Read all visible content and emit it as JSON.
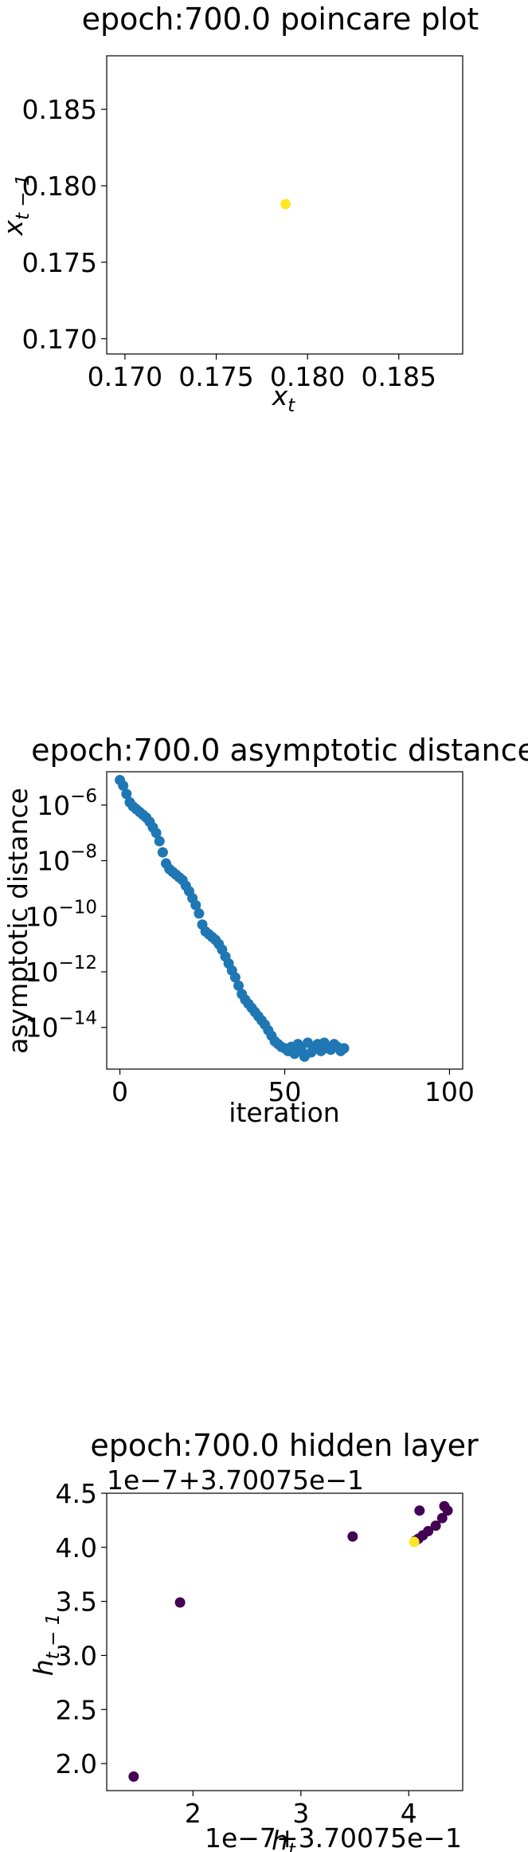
{
  "chart_data": [
    {
      "type": "scatter",
      "title": "epoch:700.0 poincare plot",
      "xlabel": "x",
      "xlabel_sub": "t",
      "ylabel": "x",
      "ylabel_sub": "t − 1",
      "xlim": [
        0.169,
        0.1885
      ],
      "ylim": [
        0.169,
        0.1885
      ],
      "x_ticks": [
        0.17,
        0.175,
        0.18,
        0.185
      ],
      "x_tick_labels": [
        "0.170",
        "0.175",
        "0.180",
        "0.185"
      ],
      "y_ticks": [
        0.17,
        0.175,
        0.18,
        0.185
      ],
      "y_tick_labels": [
        "0.170",
        "0.175",
        "0.180",
        "0.185"
      ],
      "grid": false,
      "points": [
        {
          "x": 0.1788,
          "y": 0.1788,
          "color": "#fde725"
        }
      ]
    },
    {
      "type": "scatter",
      "title": "epoch:700.0 asymptotic distance",
      "xlabel": "iteration",
      "ylabel": "asymptotic distance",
      "yscale": "log",
      "xlim": [
        -4,
        104
      ],
      "ylim_log10": [
        -15.5,
        -4.8
      ],
      "x_ticks": [
        0,
        50,
        100
      ],
      "x_tick_labels": [
        "0",
        "50",
        "100"
      ],
      "y_ticks_log10": [
        -6,
        -8,
        -10,
        -12,
        -14
      ],
      "y_tick_base": "10",
      "y_tick_exps": [
        "−6",
        "−8",
        "−10",
        "−12",
        "−14"
      ],
      "grid": false,
      "color": "#1f77b4",
      "x": [
        0,
        1,
        2,
        3,
        4,
        5,
        6,
        7,
        8,
        9,
        10,
        11,
        12,
        13,
        14,
        15,
        16,
        17,
        18,
        19,
        20,
        21,
        22,
        23,
        24,
        25,
        26,
        27,
        28,
        29,
        30,
        31,
        32,
        33,
        34,
        35,
        36,
        37,
        38,
        39,
        40,
        41,
        42,
        43,
        44,
        45,
        46,
        47,
        48,
        49,
        50,
        51,
        52,
        53,
        54,
        55,
        56,
        57,
        58,
        59,
        60,
        61,
        62,
        63,
        64,
        65,
        66,
        67,
        68
      ],
      "log10_y": [
        -5.1,
        -5.3,
        -5.6,
        -5.9,
        -6.05,
        -6.15,
        -6.25,
        -6.35,
        -6.45,
        -6.6,
        -6.8,
        -7.0,
        -7.3,
        -7.7,
        -8.1,
        -8.3,
        -8.4,
        -8.5,
        -8.6,
        -8.7,
        -8.9,
        -9.1,
        -9.35,
        -9.6,
        -9.9,
        -10.3,
        -10.55,
        -10.65,
        -10.75,
        -10.85,
        -11.0,
        -11.2,
        -11.45,
        -11.7,
        -11.95,
        -12.2,
        -12.5,
        -12.8,
        -13.0,
        -13.15,
        -13.3,
        -13.45,
        -13.6,
        -13.75,
        -13.9,
        -14.1,
        -14.3,
        -14.5,
        -14.6,
        -14.7,
        -14.75,
        -14.85,
        -14.7,
        -14.95,
        -14.6,
        -14.8,
        -15.05,
        -14.55,
        -14.9,
        -14.7,
        -14.6,
        -14.85,
        -14.55,
        -14.75,
        -14.8,
        -14.6,
        -14.7,
        -14.85,
        -14.75
      ]
    },
    {
      "type": "scatter",
      "title": "epoch:700.0 hidden layer",
      "xlabel": "h",
      "xlabel_sub": "t",
      "ylabel": "h",
      "ylabel_sub": "t − 1",
      "x_offset_text": "1e−7+3.70075e−1",
      "y_offset_text": "1e−7+3.70075e−1",
      "xlim": [
        1.2,
        4.5
      ],
      "ylim": [
        1.75,
        4.5
      ],
      "x_ticks": [
        2,
        3,
        4
      ],
      "x_tick_labels": [
        "2",
        "3",
        "4"
      ],
      "y_ticks": [
        2.0,
        2.5,
        3.0,
        3.5,
        4.0,
        4.5
      ],
      "y_tick_labels": [
        "2.0",
        "2.5",
        "3.0",
        "3.5",
        "4.0",
        "4.5"
      ],
      "grid": false,
      "points": [
        {
          "x": 1.45,
          "y": 1.88,
          "color": "#440154"
        },
        {
          "x": 1.88,
          "y": 3.49,
          "color": "#440154"
        },
        {
          "x": 3.48,
          "y": 4.1,
          "color": "#440154"
        },
        {
          "x": 4.1,
          "y": 4.34,
          "color": "#440154"
        },
        {
          "x": 4.33,
          "y": 4.38,
          "color": "#440154"
        },
        {
          "x": 4.36,
          "y": 4.34,
          "color": "#440154"
        },
        {
          "x": 4.31,
          "y": 4.27,
          "color": "#440154"
        },
        {
          "x": 4.25,
          "y": 4.2,
          "color": "#440154"
        },
        {
          "x": 4.18,
          "y": 4.15,
          "color": "#440154"
        },
        {
          "x": 4.13,
          "y": 4.11,
          "color": "#440154"
        },
        {
          "x": 4.09,
          "y": 4.08,
          "color": "#440154"
        },
        {
          "x": 4.06,
          "y": 4.06,
          "color": "#440154"
        },
        {
          "x": 4.05,
          "y": 4.05,
          "color": "#fde725"
        }
      ]
    }
  ]
}
